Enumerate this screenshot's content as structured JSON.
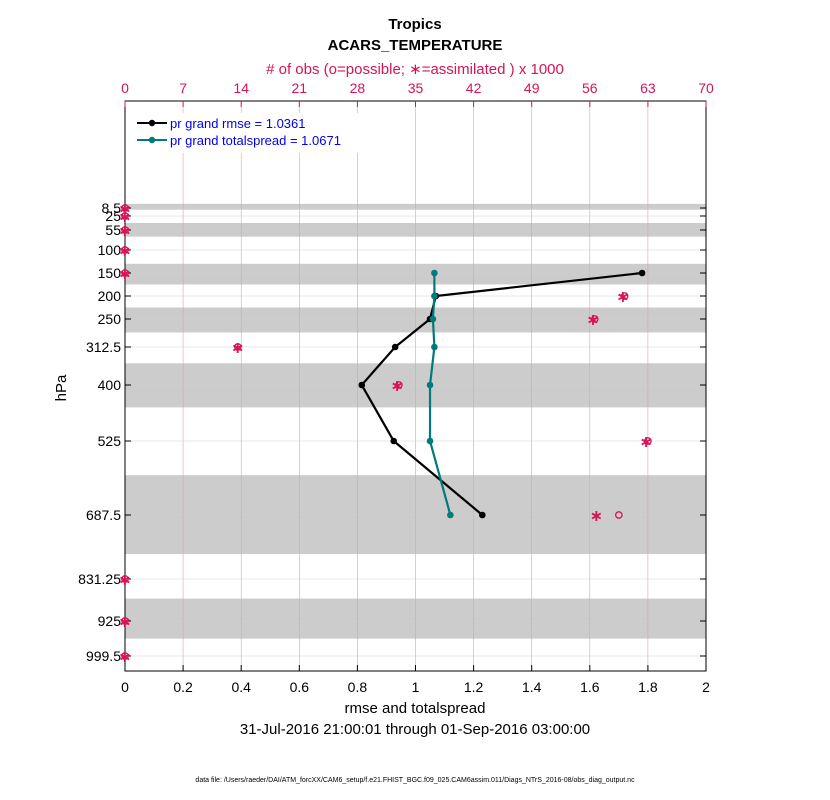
{
  "chart_data": {
    "type": "line",
    "title": "Tropics",
    "subtitle": "ACARS_TEMPERATURE",
    "top_axis_label": "# of obs (o=possible; ∗=assimilated ) x 1000",
    "top_ticks": [
      "0",
      "7",
      "14",
      "21",
      "28",
      "35",
      "42",
      "49",
      "56",
      "63",
      "70"
    ],
    "top_xlim": [
      0,
      70
    ],
    "xlabel": "rmse and totalspread",
    "ylabel": "hPa",
    "date_range": "31-Jul-2016 21:00:01 through 01-Sep-2016 03:00:00",
    "footnote": "data file: /Users/raeder/DAI/ATM_forcXX/CAM6_setup/f.e21.FHIST_BGC.f09_025.CAM6assim.011/Diags_NTrS_2016-08/obs_diag_output.nc",
    "xlim": [
      0,
      2
    ],
    "x_ticks": [
      "0",
      "0.2",
      "0.4",
      "0.6",
      "0.8",
      "1",
      "1.2",
      "1.4",
      "1.6",
      "1.8",
      "2"
    ],
    "y_levels": [
      8.5,
      25,
      55,
      100,
      150,
      200,
      250,
      312.5,
      400,
      525,
      687.5,
      831.25,
      925,
      999.5
    ],
    "y_tick_labels": [
      "8.5",
      "25",
      "55",
      "100",
      "150",
      "200",
      "250",
      "312.5",
      "400",
      "525",
      "687.5",
      "831.25",
      "925",
      "999.5"
    ],
    "y_inverted": true,
    "shaded_bands": [
      [
        0,
        12
      ],
      [
        40,
        70
      ],
      [
        130,
        175
      ],
      [
        225,
        280
      ],
      [
        350,
        450
      ],
      [
        600,
        775
      ],
      [
        875,
        962.5
      ]
    ],
    "grid": true,
    "legend": {
      "position": "top-left",
      "entries": [
        "pr grand rmse = 1.0361",
        "pr grand totalspread = 1.0671"
      ]
    },
    "series": [
      {
        "name": "pr grand rmse = 1.0361",
        "color": "#000000",
        "levels": [
          150,
          200,
          250,
          312.5,
          400,
          525,
          687.5
        ],
        "values": [
          1.78,
          1.07,
          1.05,
          0.93,
          0.815,
          0.925,
          1.23
        ]
      },
      {
        "name": "pr grand totalspread = 1.0671",
        "color": "#007a7a",
        "levels": [
          150,
          200,
          250,
          312.5,
          400,
          525,
          687.5
        ],
        "values": [
          1.065,
          1.065,
          1.06,
          1.065,
          1.05,
          1.05,
          1.12
        ]
      }
    ],
    "obs_counts": {
      "units": "x 1000",
      "color": "#d6145a",
      "levels": [
        8.5,
        25,
        55,
        100,
        150,
        200,
        250,
        312.5,
        400,
        525,
        687.5,
        831.25,
        925,
        999.5
      ],
      "possible": [
        0,
        0,
        0,
        0,
        0,
        60.2,
        56.6,
        13.6,
        33,
        63,
        59.5,
        0,
        0,
        0
      ],
      "assimilated": [
        0,
        0,
        0,
        0,
        0,
        60,
        56.4,
        13.6,
        32.8,
        62.8,
        56.8,
        0,
        0,
        0
      ]
    }
  }
}
